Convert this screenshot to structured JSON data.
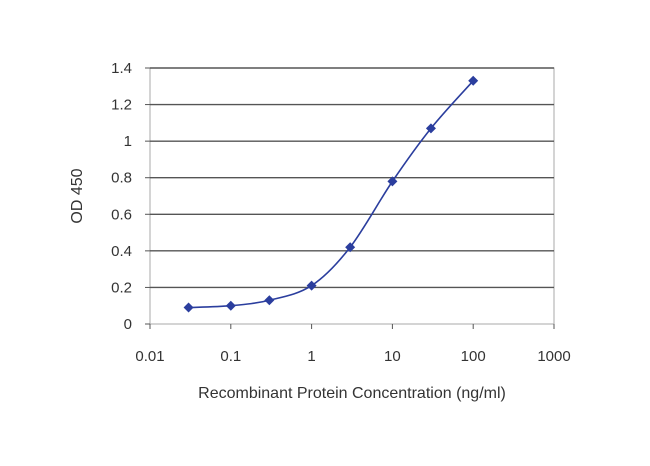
{
  "chart_data": {
    "type": "line",
    "xlabel": "Recombinant Protein Concentration (ng/ml)",
    "ylabel": "OD 450",
    "x_scale": "log",
    "xlim": [
      0.01,
      1000
    ],
    "ylim": [
      0,
      1.4
    ],
    "x_ticks": [
      "0.01",
      "0.1",
      "1",
      "10",
      "100",
      "1000"
    ],
    "y_ticks": [
      "0",
      "0.2",
      "0.4",
      "0.6",
      "0.8",
      "1",
      "1.2",
      "1.4"
    ],
    "grid": "horizontal",
    "series": [
      {
        "color": "#2b3e9e",
        "x": [
          0.03,
          0.1,
          0.3,
          1,
          3,
          10,
          30,
          100
        ],
        "y": [
          0.09,
          0.1,
          0.13,
          0.21,
          0.42,
          0.78,
          1.07,
          1.33
        ]
      }
    ]
  }
}
